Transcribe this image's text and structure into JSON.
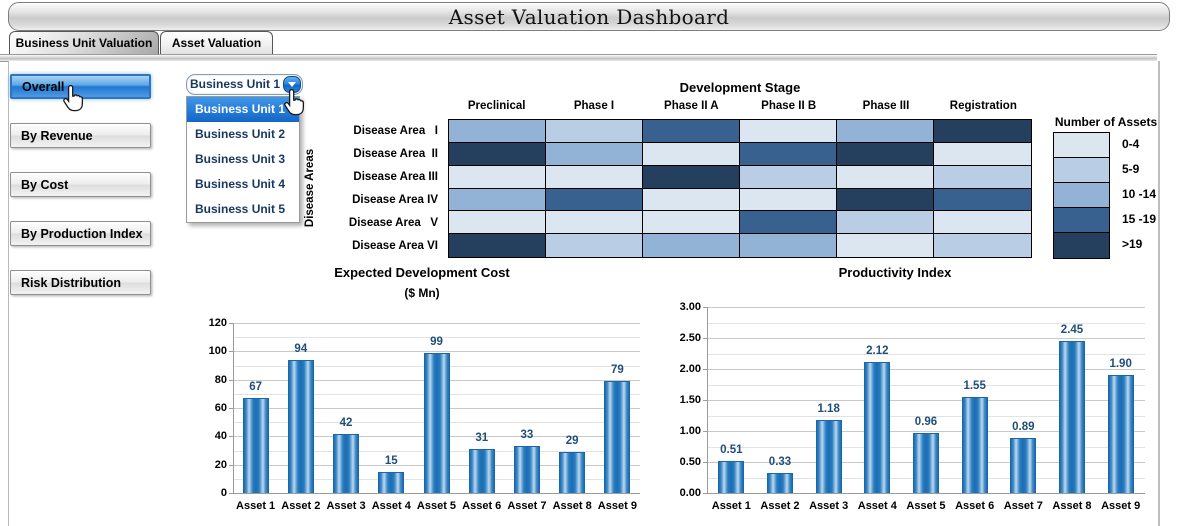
{
  "title": "Asset Valuation Dashboard",
  "tabs": [
    {
      "label": "Business Unit Valuation",
      "active": true
    },
    {
      "label": "Asset Valuation",
      "active": false
    }
  ],
  "sidebar": {
    "buttons": [
      "Overall",
      "By Revenue",
      "By Cost",
      "By Production Index",
      "Risk Distribution"
    ],
    "active": "Overall"
  },
  "dropdown": {
    "selected": "Business Unit 1",
    "highlighted": "Business Unit 1",
    "options": [
      "Business Unit 1",
      "Business Unit 2",
      "Business Unit 3",
      "Business Unit 4",
      "Business Unit 5"
    ]
  },
  "heatmap": {
    "title": "Development Stage",
    "row_axis_label": "Disease Areas",
    "columns": [
      "Preclinical",
      "Phase I",
      "Phase II A",
      "Phase II B",
      "Phase III",
      "Registration"
    ],
    "rows": [
      "Disease Area   I",
      "Disease Area  II",
      "Disease Area III",
      "Disease Area IV",
      "Disease Area   V",
      "Disease Area VI"
    ],
    "levels": [
      [
        3,
        2,
        4,
        1,
        3,
        5
      ],
      [
        5,
        3,
        1,
        4,
        5,
        1
      ],
      [
        1,
        1,
        5,
        2,
        1,
        2
      ],
      [
        3,
        4,
        1,
        1,
        5,
        4
      ],
      [
        1,
        1,
        1,
        4,
        2,
        1
      ],
      [
        5,
        2,
        3,
        3,
        1,
        2
      ]
    ],
    "palette": [
      "#DCE6F1",
      "#B9CDE4",
      "#92B2D6",
      "#38618F",
      "#24405E"
    ]
  },
  "legend": {
    "title": "Number of Assets",
    "entries": [
      {
        "label": "0-4",
        "color": "#DCE6F1"
      },
      {
        "label": "5-9",
        "color": "#B9CDE4"
      },
      {
        "label": "10 -14",
        "color": "#92B2D6"
      },
      {
        "label": "15 -19",
        "color": "#38618F"
      },
      {
        "label": ">19",
        "color": "#24405E"
      }
    ]
  },
  "colors": {
    "accent_blue": "#1E73D2",
    "bar_blue": "#1A6DB4",
    "value_label": "#1F4E79",
    "dropdown_text": "#17375E"
  },
  "chart_data": [
    {
      "type": "bar",
      "title": "Expected Development Cost",
      "subtitle": "($ Mn)",
      "categories": [
        "Asset 1",
        "Asset 2",
        "Asset 3",
        "Asset 4",
        "Asset 5",
        "Asset 6",
        "Asset 7",
        "Asset 8",
        "Asset 9"
      ],
      "values": [
        67,
        94,
        42,
        15,
        99,
        31,
        33,
        29,
        79
      ],
      "xlabel": "",
      "ylabel": "",
      "ylim": [
        0,
        120
      ],
      "ytick_major": 20,
      "ytick_minor": 10,
      "decimals": 0,
      "grid": true,
      "legend_position": "none",
      "data_labels": true
    },
    {
      "type": "bar",
      "title": "Productivity Index",
      "subtitle": "",
      "categories": [
        "Asset 1",
        "Asset 2",
        "Asset 3",
        "Asset 4",
        "Asset 5",
        "Asset 6",
        "Asset 7",
        "Asset 8",
        "Asset 9"
      ],
      "values": [
        0.51,
        0.33,
        1.18,
        2.12,
        0.96,
        1.55,
        0.89,
        2.45,
        1.9
      ],
      "xlabel": "",
      "ylabel": "",
      "ylim": [
        0,
        3.0
      ],
      "ytick_major": 0.5,
      "ytick_minor": 0.25,
      "decimals": 2,
      "grid": true,
      "legend_position": "none",
      "data_labels": true
    }
  ]
}
